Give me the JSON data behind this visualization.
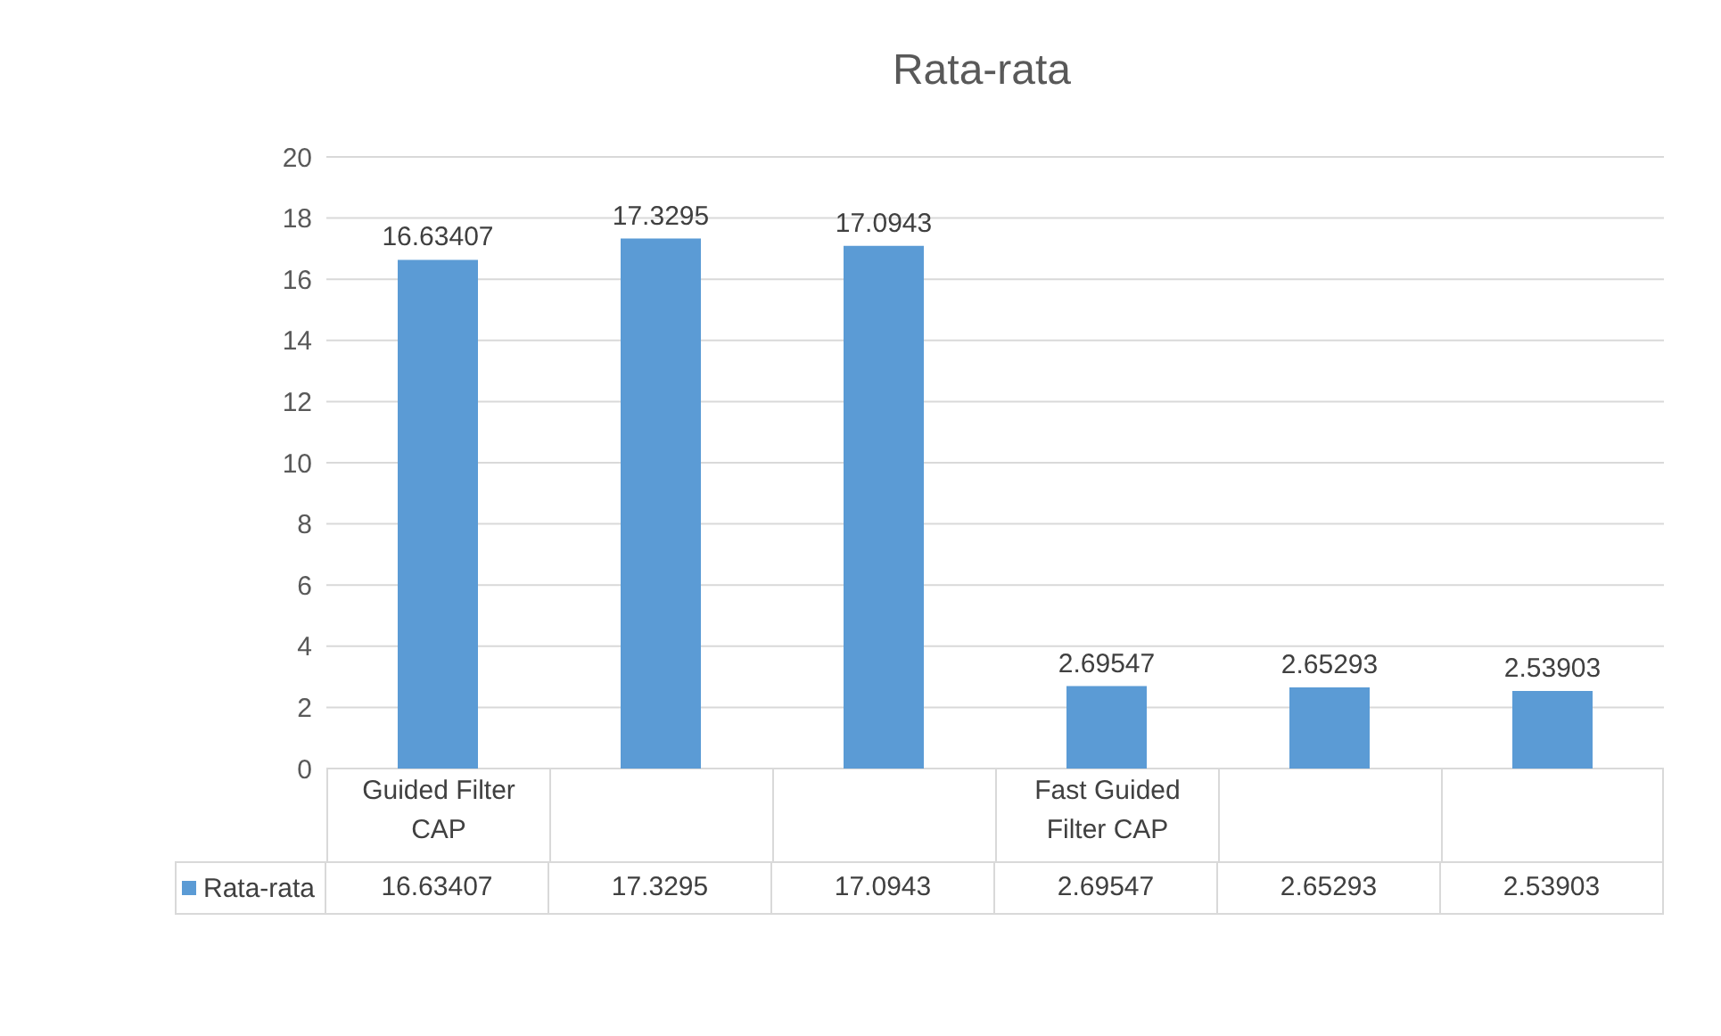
{
  "chart_data": {
    "type": "bar",
    "title": "Rata-rata",
    "categories": [
      "Guided Filter CAP",
      null,
      null,
      "Fast Guided Filter CAP",
      null,
      null
    ],
    "series": [
      {
        "name": "Rata-rata",
        "color": "#5b9bd5",
        "values": [
          16.63407,
          17.3295,
          17.0943,
          2.69547,
          2.65293,
          2.53903
        ],
        "value_labels": [
          "16.63407",
          "17.3295",
          "17.0943",
          "2.69547",
          "2.65293",
          "2.53903"
        ]
      }
    ],
    "ylim": [
      0,
      20
    ],
    "yticks": [
      0,
      2,
      4,
      6,
      8,
      10,
      12,
      14,
      16,
      18,
      20
    ],
    "grid": "y",
    "legend": "bottom",
    "data_labels": true,
    "annotations": [
      "16.63407",
      "17.3295",
      "17.0943",
      "2.69547",
      "2.65293",
      "2.53903"
    ]
  }
}
